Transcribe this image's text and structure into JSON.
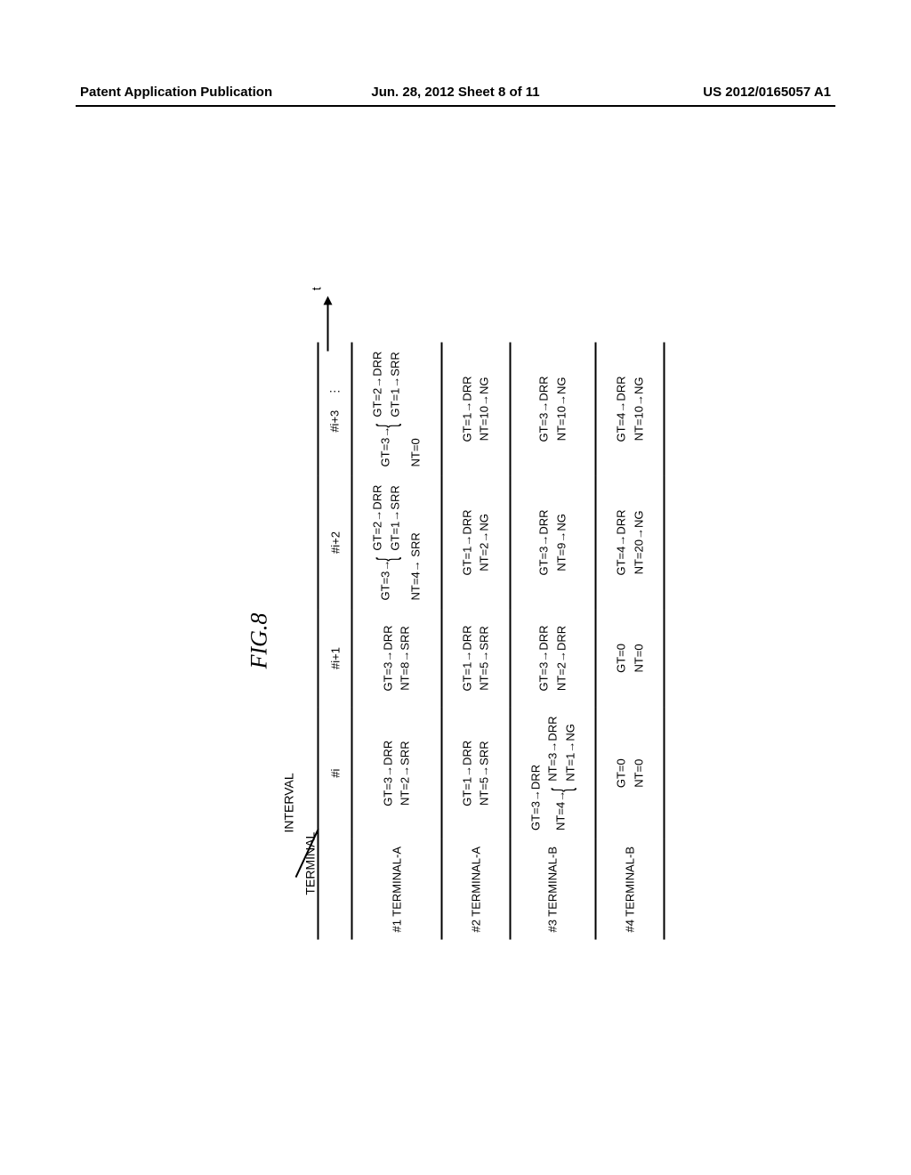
{
  "header": {
    "left": "Patent Application Publication",
    "center": "Jun. 28, 2012  Sheet 8 of 11",
    "right": "US 2012/0165057 A1"
  },
  "figure": {
    "title": "FIG.8",
    "axis": {
      "interval": "INTERVAL",
      "terminal": "TERMINAL"
    },
    "time_label": "t",
    "columns": [
      "#i",
      "#i+1",
      "#i+2",
      "#i+3",
      "⋮"
    ],
    "rows": [
      {
        "label": "#1 TERMINAL-A",
        "cells": [
          {
            "lines": [
              "GT=3→DRR",
              "NT=2→SRR"
            ]
          },
          {
            "lines": [
              "GT=3→DRR",
              "NT=8→SRR"
            ]
          },
          {
            "prefix": "GT=3→",
            "sublines": [
              "GT=2→DRR",
              "GT=1→SRR"
            ],
            "suffix": "NT=4→ SRR"
          },
          {
            "prefix": "GT=3→",
            "sublines": [
              "GT=2→DRR",
              "GT=1→SRR"
            ],
            "suffix": "NT=0"
          }
        ]
      },
      {
        "label": "#2 TERMINAL-A",
        "cells": [
          {
            "lines": [
              "GT=1→DRR",
              "NT=5→SRR"
            ]
          },
          {
            "lines": [
              "GT=1→DRR",
              "NT=5→SRR"
            ]
          },
          {
            "lines": [
              "GT=1→DRR",
              "NT=2→NG"
            ]
          },
          {
            "lines": [
              "GT=1→DRR",
              "NT=10→NG"
            ]
          }
        ]
      },
      {
        "label": "#3 TERMINAL-B",
        "cells": [
          {
            "toplines": [
              "GT=3→DRR"
            ],
            "prefix2": "NT=4→",
            "sublines2": [
              "NT=3→DRR",
              "NT=1→NG"
            ]
          },
          {
            "lines": [
              "GT=3→DRR",
              "NT=2→DRR"
            ]
          },
          {
            "lines": [
              "GT=3→DRR",
              "NT=9→NG"
            ]
          },
          {
            "lines": [
              "GT=3→DRR",
              "NT=10→NG"
            ]
          }
        ]
      },
      {
        "label": "#4 TERMINAL-B",
        "cells": [
          {
            "lines": [
              "GT=0",
              "NT=0"
            ]
          },
          {
            "lines": [
              "GT=0",
              "NT=0"
            ]
          },
          {
            "lines": [
              "GT=4→DRR",
              "NT=20→NG"
            ]
          },
          {
            "lines": [
              "GT=4→DRR",
              "NT=10→NG"
            ]
          }
        ]
      }
    ]
  }
}
